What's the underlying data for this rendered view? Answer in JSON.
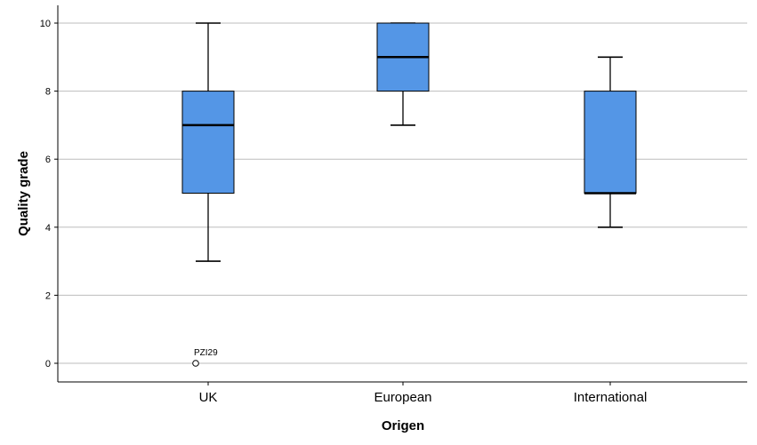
{
  "chart_data": {
    "type": "boxplot",
    "xlabel": "Origen",
    "ylabel": "Quality grade",
    "ylim": [
      -0.5,
      10.5
    ],
    "yticks": [
      0,
      2,
      4,
      6,
      8,
      10
    ],
    "grid": true,
    "categories": [
      "UK",
      "European",
      "International"
    ],
    "boxes": [
      {
        "category": "UK",
        "min": 3,
        "q1": 5,
        "median": 7,
        "q3": 8,
        "max": 10,
        "outliers": [
          {
            "value": 0,
            "label": "PZI29"
          }
        ]
      },
      {
        "category": "European",
        "min": 7,
        "q1": 8,
        "median": 9,
        "q3": 10,
        "max": 10,
        "outliers": []
      },
      {
        "category": "International",
        "min": 4,
        "q1": 5,
        "median": 5,
        "q3": 8,
        "max": 9,
        "outliers": []
      }
    ],
    "box_color": "#5496e6",
    "grid_color": "#bdbdbd"
  }
}
